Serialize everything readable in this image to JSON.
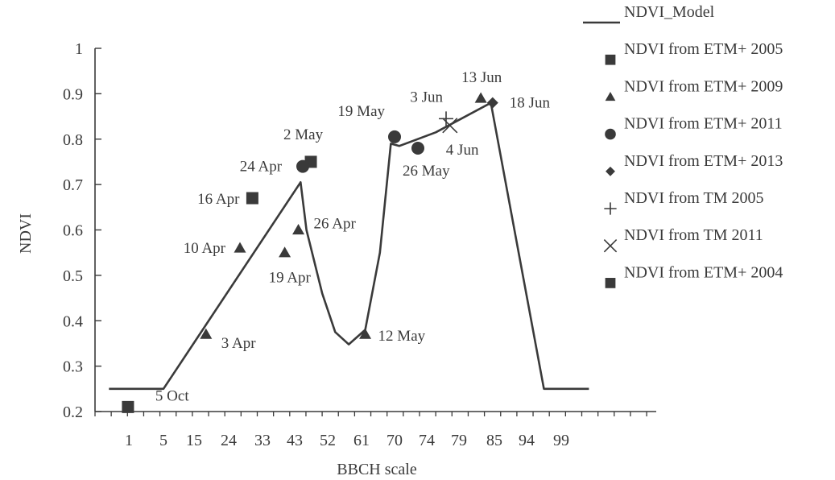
{
  "chart_data": {
    "type": "line",
    "title": "",
    "xlabel": "BBCH scale",
    "ylabel": "NDVI",
    "ylim": [
      0.2,
      1.0
    ],
    "y_ticks": [
      "0.2",
      "0.3",
      "0.4",
      "0.5",
      "0.6",
      "0.7",
      "0.8",
      "0.9",
      "1"
    ],
    "x_ticks": [
      "1",
      "5",
      "15",
      "24",
      "33",
      "43",
      "52",
      "61",
      "70",
      "74",
      "79",
      "85",
      "94",
      "99"
    ],
    "grid": false,
    "legend_position": "top-right",
    "series": [
      {
        "name": "NDVI_Model",
        "kind": "line",
        "color": "#3a3a3a",
        "points": [
          {
            "x": -1.3,
            "y": 0.25
          },
          {
            "x": 5,
            "y": 0.25
          },
          {
            "x": 44.6,
            "y": 0.705
          },
          {
            "x": 46.2,
            "y": 0.6
          },
          {
            "x": 50.5,
            "y": 0.46
          },
          {
            "x": 54,
            "y": 0.375
          },
          {
            "x": 57.6,
            "y": 0.348
          },
          {
            "x": 62,
            "y": 0.38
          },
          {
            "x": 66,
            "y": 0.55
          },
          {
            "x": 69,
            "y": 0.79
          },
          {
            "x": 70.6,
            "y": 0.785
          },
          {
            "x": 75.4,
            "y": 0.815
          },
          {
            "x": 84.4,
            "y": 0.88
          },
          {
            "x": 96.5,
            "y": 0.25
          },
          {
            "x": 103,
            "y": 0.25
          }
        ]
      },
      {
        "name": "NDVI from ETM+ 2005",
        "kind": "scatter",
        "marker": "square",
        "points": [
          {
            "x": 47.4,
            "y": 0.75,
            "label": "2 May"
          },
          {
            "x": 30.3,
            "y": 0.67,
            "label": "16 Apr"
          }
        ]
      },
      {
        "name": "NDVI from ETM+ 2009",
        "kind": "scatter",
        "marker": "triangle",
        "points": [
          {
            "x": 18.1,
            "y": 0.37,
            "label": "3 Apr"
          },
          {
            "x": 27,
            "y": 0.56,
            "label": "10 Apr"
          },
          {
            "x": 39.9,
            "y": 0.55,
            "label": "19 Apr"
          },
          {
            "x": 44,
            "y": 0.6,
            "label": "26 Apr"
          },
          {
            "x": 62,
            "y": 0.37,
            "label": "12 May"
          },
          {
            "x": 82.7,
            "y": 0.89,
            "label": "13 Jun"
          }
        ]
      },
      {
        "name": "NDVI from ETM+ 2011",
        "kind": "scatter",
        "marker": "circle",
        "points": [
          {
            "x": 45.2,
            "y": 0.74,
            "label": "24 Apr"
          },
          {
            "x": 70,
            "y": 0.805,
            "label": "19 May"
          },
          {
            "x": 72.9,
            "y": 0.78,
            "label": "26 May"
          }
        ]
      },
      {
        "name": "NDVI from ETM+ 2013",
        "kind": "scatter",
        "marker": "diamond",
        "points": [
          {
            "x": 84.7,
            "y": 0.88,
            "label": "18 Jun"
          }
        ]
      },
      {
        "name": "NDVI from TM 2005",
        "kind": "scatter",
        "marker": "plus",
        "points": [
          {
            "x": 77,
            "y": 0.845,
            "label": "3 Jun"
          }
        ]
      },
      {
        "name": "NDVI from TM 2011",
        "kind": "scatter",
        "marker": "x",
        "points": [
          {
            "x": 77.6,
            "y": 0.83,
            "label": "4 Jun"
          }
        ]
      },
      {
        "name": "NDVI from ETM+ 2004",
        "kind": "scatter",
        "marker": "square",
        "points": [
          {
            "x": 0.9,
            "y": 0.21,
            "label": "5 Oct"
          }
        ]
      }
    ]
  }
}
